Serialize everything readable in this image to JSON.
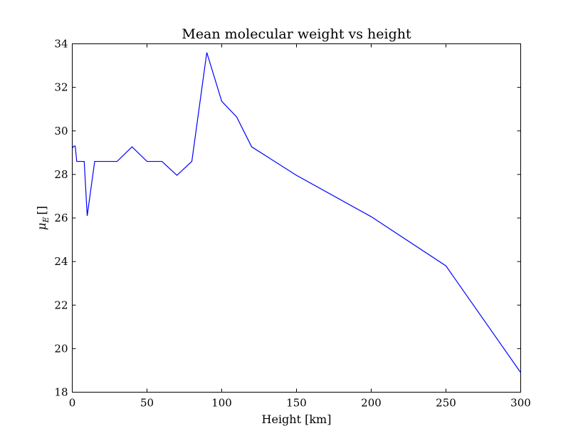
{
  "chart_data": {
    "type": "line",
    "title": "Mean molecular weight vs height",
    "xlabel": "Height [km]",
    "ylabel": "μE []",
    "ylabel_main": "μ",
    "ylabel_sub": "E",
    "ylabel_unit": "[]",
    "xlim": [
      0,
      300
    ],
    "ylim": [
      18,
      34
    ],
    "xticks": [
      0,
      50,
      100,
      150,
      200,
      250,
      300
    ],
    "yticks": [
      18,
      20,
      22,
      24,
      26,
      28,
      30,
      32,
      34
    ],
    "grid": false,
    "series": [
      {
        "color": "#0000ff",
        "x": [
          0,
          1,
          2,
          3,
          5,
          8,
          10,
          15,
          20,
          30,
          40,
          50,
          60,
          70,
          80,
          90,
          100,
          110,
          120,
          150,
          200,
          250,
          300
        ],
        "y": [
          29.2,
          29.3,
          29.3,
          28.6,
          28.6,
          28.6,
          26.1,
          28.6,
          28.6,
          28.6,
          29.27,
          28.6,
          28.6,
          27.96,
          28.6,
          33.6,
          31.36,
          30.64,
          29.27,
          27.96,
          26.06,
          23.8,
          18.9
        ]
      }
    ]
  }
}
